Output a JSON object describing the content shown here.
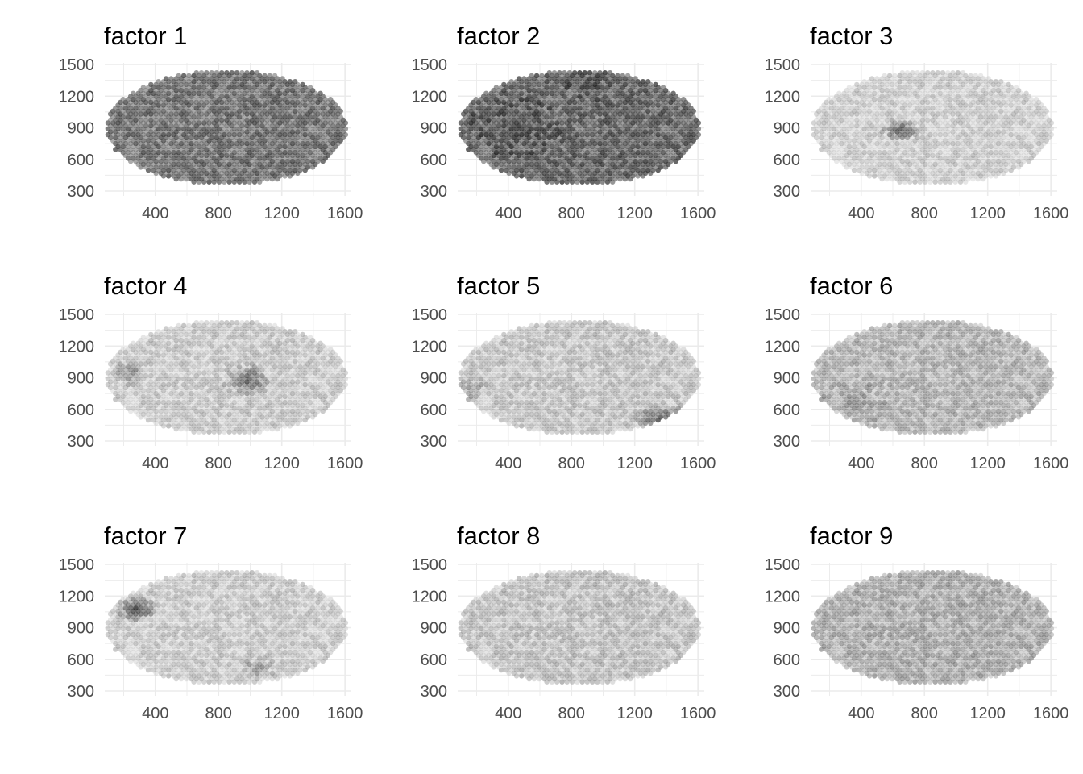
{
  "chart_data": {
    "type": "scatter",
    "description_note": "",
    "xlim": [
      80,
      1640
    ],
    "ylim": [
      300,
      1500
    ],
    "x_ticks": [
      400,
      800,
      1200,
      1600
    ],
    "y_ticks": [
      300,
      600,
      900,
      1200,
      1500
    ],
    "grid": true,
    "legend": "none",
    "point_color_scale": [
      "#bfbfbf",
      "#1a1a1a"
    ],
    "panels": [
      {
        "title": "factor  1",
        "base_level": 0.62,
        "hotspots": []
      },
      {
        "title": "factor  2",
        "base_level": 0.68,
        "hotspots": [
          {
            "x": 450,
            "y": 900,
            "r": 300,
            "level": 0.8
          },
          {
            "x": 900,
            "y": 1300,
            "r": 150,
            "level": 0.8
          }
        ]
      },
      {
        "title": "factor  3",
        "base_level": 0.12,
        "hotspots": [
          {
            "x": 650,
            "y": 880,
            "r": 130,
            "level": 0.75
          }
        ]
      },
      {
        "title": "factor  4",
        "base_level": 0.15,
        "hotspots": [
          {
            "x": 980,
            "y": 880,
            "r": 160,
            "level": 0.75
          },
          {
            "x": 250,
            "y": 950,
            "r": 120,
            "level": 0.55
          }
        ]
      },
      {
        "title": "factor  5",
        "base_level": 0.18,
        "hotspots": [
          {
            "x": 1380,
            "y": 480,
            "r": 200,
            "level": 0.8
          },
          {
            "x": 160,
            "y": 800,
            "r": 120,
            "level": 0.45
          }
        ]
      },
      {
        "title": "factor  6",
        "base_level": 0.28,
        "hotspots": [
          {
            "x": 350,
            "y": 650,
            "r": 220,
            "level": 0.45
          }
        ]
      },
      {
        "title": "factor  7",
        "base_level": 0.14,
        "hotspots": [
          {
            "x": 280,
            "y": 1080,
            "r": 140,
            "level": 0.85
          },
          {
            "x": 1050,
            "y": 520,
            "r": 110,
            "level": 0.5
          }
        ]
      },
      {
        "title": "factor  8",
        "base_level": 0.2,
        "hotspots": []
      },
      {
        "title": "factor  9",
        "base_level": 0.32,
        "hotspots": []
      }
    ],
    "panel_layout": {
      "rows": 3,
      "cols": 3
    }
  }
}
